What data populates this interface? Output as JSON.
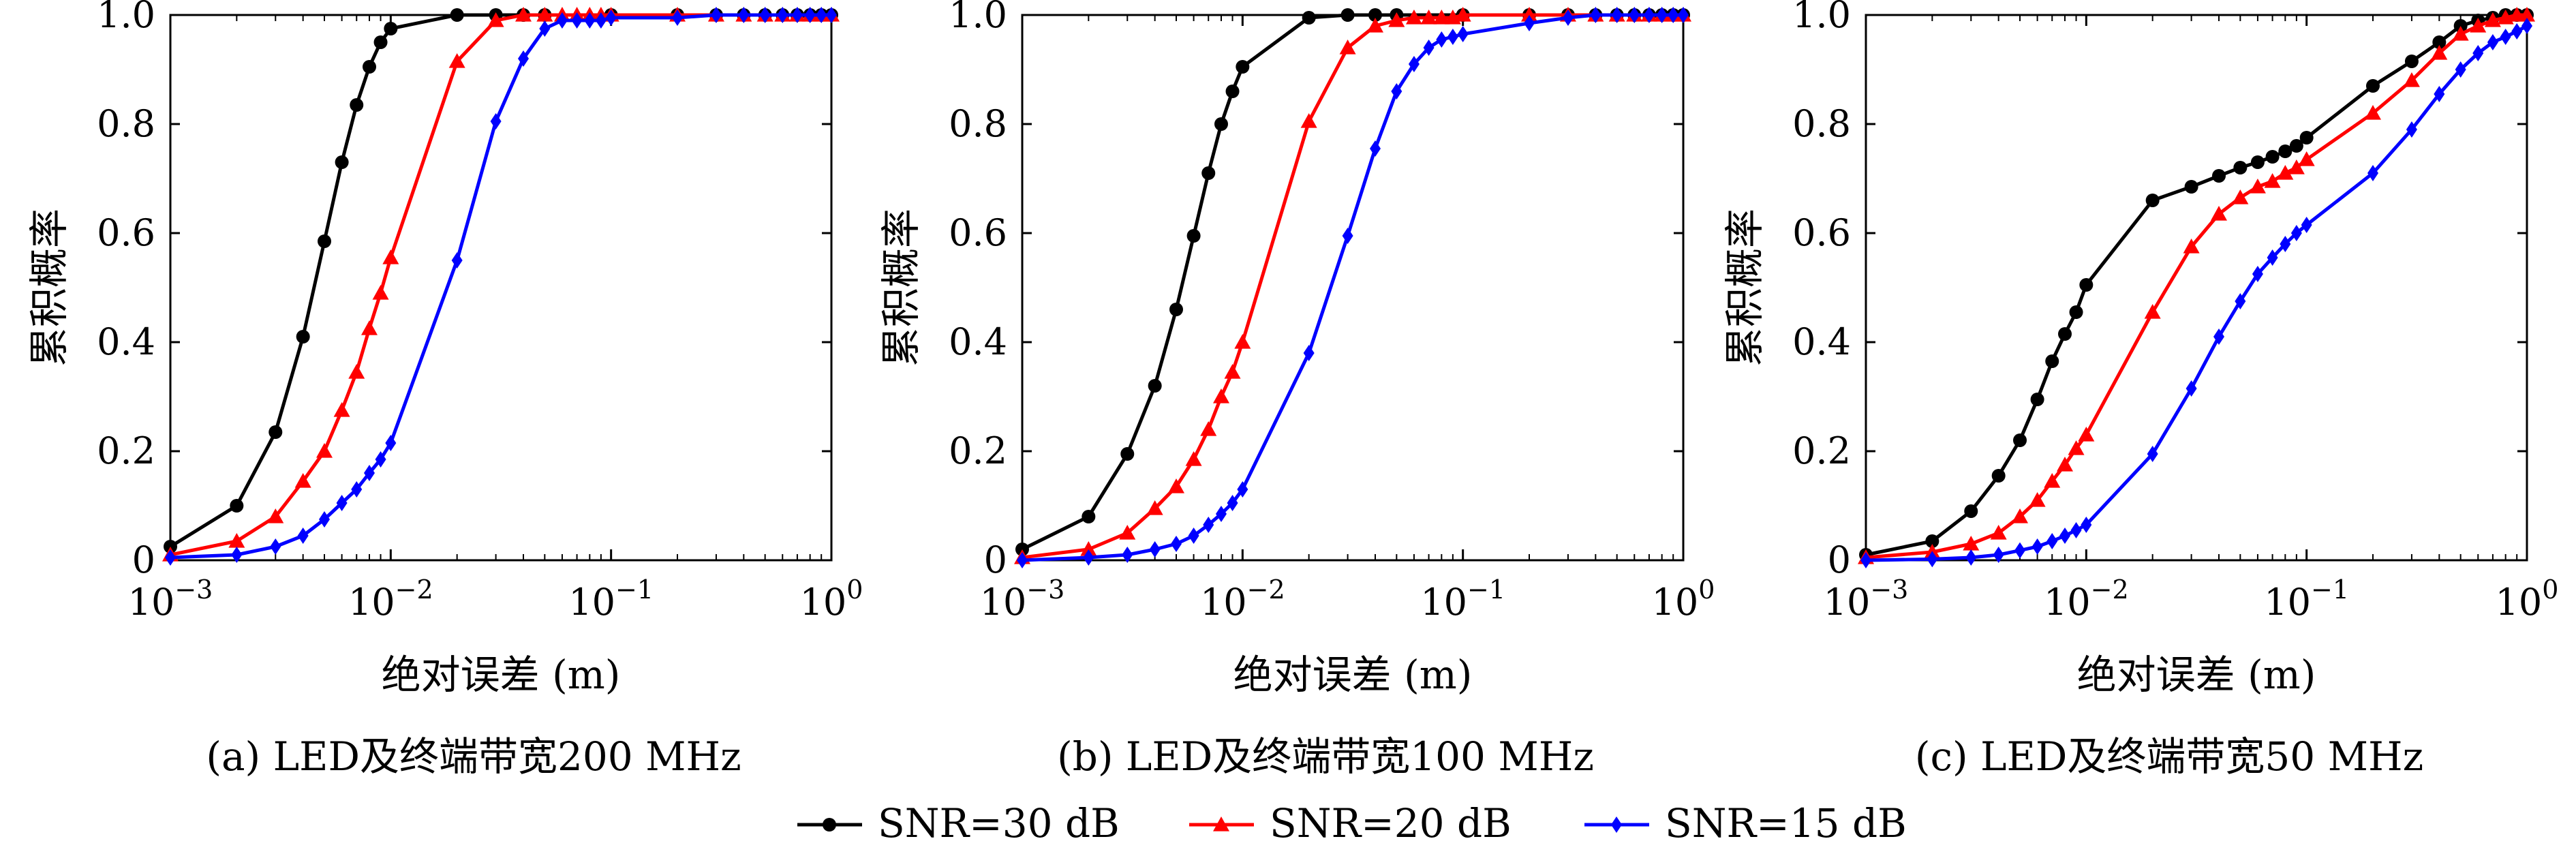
{
  "figure": {
    "legend": [
      {
        "label": "SNR=30 dB",
        "color": "#000000",
        "marker": "circle"
      },
      {
        "label": "SNR=20 dB",
        "color": "#ff0000",
        "marker": "triangle"
      },
      {
        "label": "SNR=15 dB",
        "color": "#0000ff",
        "marker": "diamond"
      }
    ]
  },
  "chart_data": [
    {
      "type": "line",
      "caption": "(a) LED及终端带宽200 MHz",
      "xlabel": "绝对误差 (m)",
      "ylabel": "累积概率",
      "xscale": "log",
      "xlim": [
        0.001,
        1
      ],
      "ylim": [
        0,
        1
      ],
      "xticks": [
        {
          "base": "10",
          "exp": "−3"
        },
        {
          "base": "10",
          "exp": "−2"
        },
        {
          "base": "10",
          "exp": "−1"
        },
        {
          "base": "10",
          "exp": "0"
        }
      ],
      "yticks": [
        "0",
        "0.2",
        "0.4",
        "0.6",
        "0.8",
        "1.0"
      ],
      "series": [
        {
          "name": "SNR=30 dB",
          "color": "#000000",
          "marker": "circle",
          "x": [
            0.001,
            0.002,
            0.003,
            0.004,
            0.005,
            0.006,
            0.007,
            0.008,
            0.009,
            0.01,
            0.02,
            0.03,
            0.04,
            0.05,
            0.1,
            0.2,
            0.3,
            0.4,
            0.5,
            0.6,
            0.7,
            0.8,
            0.9,
            1.0
          ],
          "y": [
            0.025,
            0.1,
            0.235,
            0.41,
            0.585,
            0.73,
            0.835,
            0.905,
            0.95,
            0.975,
            1.0,
            1.0,
            1.0,
            1.0,
            1.0,
            1.0,
            1.0,
            1.0,
            1.0,
            1.0,
            1.0,
            1.0,
            1.0,
            1.0
          ]
        },
        {
          "name": "SNR=20 dB",
          "color": "#ff0000",
          "marker": "triangle",
          "x": [
            0.001,
            0.002,
            0.003,
            0.004,
            0.005,
            0.006,
            0.007,
            0.008,
            0.009,
            0.01,
            0.02,
            0.03,
            0.04,
            0.05,
            0.06,
            0.07,
            0.08,
            0.09,
            0.1,
            0.2,
            0.3,
            0.4,
            0.5,
            0.6,
            0.7,
            0.8,
            0.9,
            1.0
          ],
          "y": [
            0.01,
            0.035,
            0.08,
            0.145,
            0.2,
            0.275,
            0.345,
            0.425,
            0.49,
            0.555,
            0.915,
            0.99,
            1.0,
            1.0,
            1.0,
            1.0,
            1.0,
            1.0,
            1.0,
            1.0,
            1.0,
            1.0,
            1.0,
            1.0,
            1.0,
            1.0,
            1.0,
            1.0
          ]
        },
        {
          "name": "SNR=15 dB",
          "color": "#0000ff",
          "marker": "diamond",
          "x": [
            0.001,
            0.002,
            0.003,
            0.004,
            0.005,
            0.006,
            0.007,
            0.008,
            0.009,
            0.01,
            0.02,
            0.03,
            0.04,
            0.05,
            0.06,
            0.07,
            0.08,
            0.09,
            0.1,
            0.2,
            0.3,
            0.4,
            0.5,
            0.6,
            0.7,
            0.8,
            0.9,
            1.0
          ],
          "y": [
            0.005,
            0.01,
            0.025,
            0.045,
            0.075,
            0.105,
            0.13,
            0.16,
            0.185,
            0.215,
            0.55,
            0.805,
            0.92,
            0.975,
            0.99,
            0.99,
            0.99,
            0.99,
            0.995,
            0.995,
            1.0,
            1.0,
            1.0,
            1.0,
            1.0,
            1.0,
            1.0,
            1.0
          ]
        }
      ]
    },
    {
      "type": "line",
      "caption": "(b) LED及终端带宽100 MHz",
      "xlabel": "绝对误差 (m)",
      "ylabel": "累积概率",
      "xscale": "log",
      "xlim": [
        0.001,
        1
      ],
      "ylim": [
        0,
        1
      ],
      "xticks": [
        {
          "base": "10",
          "exp": "−3"
        },
        {
          "base": "10",
          "exp": "−2"
        },
        {
          "base": "10",
          "exp": "−1"
        },
        {
          "base": "10",
          "exp": "0"
        }
      ],
      "yticks": [
        "0",
        "0.2",
        "0.4",
        "0.6",
        "0.8",
        "1.0"
      ],
      "series": [
        {
          "name": "SNR=30 dB",
          "color": "#000000",
          "marker": "circle",
          "x": [
            0.001,
            0.002,
            0.003,
            0.004,
            0.005,
            0.006,
            0.007,
            0.008,
            0.009,
            0.01,
            0.02,
            0.03,
            0.04,
            0.05,
            0.1,
            0.2,
            0.3,
            0.4,
            0.5,
            0.6,
            0.7,
            0.8,
            0.9,
            1.0
          ],
          "y": [
            0.02,
            0.08,
            0.195,
            0.32,
            0.46,
            0.595,
            0.71,
            0.8,
            0.86,
            0.905,
            0.995,
            1.0,
            1.0,
            1.0,
            1.0,
            1.0,
            1.0,
            1.0,
            1.0,
            1.0,
            1.0,
            1.0,
            1.0,
            1.0
          ]
        },
        {
          "name": "SNR=20 dB",
          "color": "#ff0000",
          "marker": "triangle",
          "x": [
            0.001,
            0.002,
            0.003,
            0.004,
            0.005,
            0.006,
            0.007,
            0.008,
            0.009,
            0.01,
            0.02,
            0.03,
            0.04,
            0.05,
            0.06,
            0.07,
            0.08,
            0.09,
            0.1,
            0.2,
            0.3,
            0.4,
            0.5,
            0.6,
            0.7,
            0.8,
            0.9,
            1.0
          ],
          "y": [
            0.005,
            0.02,
            0.05,
            0.095,
            0.135,
            0.185,
            0.24,
            0.3,
            0.345,
            0.4,
            0.805,
            0.94,
            0.98,
            0.99,
            0.995,
            0.995,
            0.995,
            0.995,
            1.0,
            1.0,
            1.0,
            1.0,
            1.0,
            1.0,
            1.0,
            1.0,
            1.0,
            1.0
          ]
        },
        {
          "name": "SNR=15 dB",
          "color": "#0000ff",
          "marker": "diamond",
          "x": [
            0.001,
            0.002,
            0.003,
            0.004,
            0.005,
            0.006,
            0.007,
            0.008,
            0.009,
            0.01,
            0.02,
            0.03,
            0.04,
            0.05,
            0.06,
            0.07,
            0.08,
            0.09,
            0.1,
            0.2,
            0.3,
            0.4,
            0.5,
            0.6,
            0.7,
            0.8,
            0.9,
            1.0
          ],
          "y": [
            0.0,
            0.005,
            0.01,
            0.02,
            0.03,
            0.045,
            0.065,
            0.085,
            0.105,
            0.13,
            0.38,
            0.595,
            0.755,
            0.86,
            0.91,
            0.94,
            0.955,
            0.96,
            0.965,
            0.985,
            0.995,
            1.0,
            1.0,
            1.0,
            1.0,
            1.0,
            1.0,
            1.0
          ]
        }
      ]
    },
    {
      "type": "line",
      "caption": "(c) LED及终端带宽50 MHz",
      "xlabel": "绝对误差 (m)",
      "ylabel": "累积概率",
      "xscale": "log",
      "xlim": [
        0.001,
        1
      ],
      "ylim": [
        0,
        1
      ],
      "xticks": [
        {
          "base": "10",
          "exp": "−3"
        },
        {
          "base": "10",
          "exp": "−2"
        },
        {
          "base": "10",
          "exp": "−1"
        },
        {
          "base": "10",
          "exp": "0"
        }
      ],
      "yticks": [
        "0",
        "0.2",
        "0.4",
        "0.6",
        "0.8",
        "1.0"
      ],
      "series": [
        {
          "name": "SNR=30 dB",
          "color": "#000000",
          "marker": "circle",
          "x": [
            0.001,
            0.002,
            0.003,
            0.004,
            0.005,
            0.006,
            0.007,
            0.008,
            0.009,
            0.01,
            0.02,
            0.03,
            0.04,
            0.05,
            0.06,
            0.07,
            0.08,
            0.09,
            0.1,
            0.2,
            0.3,
            0.4,
            0.5,
            0.6,
            0.7,
            0.8,
            0.9,
            1.0
          ],
          "y": [
            0.01,
            0.035,
            0.09,
            0.155,
            0.22,
            0.295,
            0.365,
            0.415,
            0.455,
            0.505,
            0.66,
            0.685,
            0.705,
            0.72,
            0.73,
            0.74,
            0.75,
            0.76,
            0.775,
            0.87,
            0.915,
            0.95,
            0.98,
            0.99,
            0.995,
            1.0,
            1.0,
            1.0
          ]
        },
        {
          "name": "SNR=20 dB",
          "color": "#ff0000",
          "marker": "triangle",
          "x": [
            0.001,
            0.002,
            0.003,
            0.004,
            0.005,
            0.006,
            0.007,
            0.008,
            0.009,
            0.01,
            0.02,
            0.03,
            0.04,
            0.05,
            0.06,
            0.07,
            0.08,
            0.09,
            0.1,
            0.2,
            0.3,
            0.4,
            0.5,
            0.6,
            0.7,
            0.8,
            0.9,
            1.0
          ],
          "y": [
            0.005,
            0.015,
            0.03,
            0.05,
            0.08,
            0.11,
            0.145,
            0.175,
            0.205,
            0.23,
            0.455,
            0.575,
            0.635,
            0.665,
            0.685,
            0.695,
            0.71,
            0.72,
            0.735,
            0.82,
            0.88,
            0.93,
            0.965,
            0.98,
            0.99,
            0.995,
            1.0,
            1.0
          ]
        },
        {
          "name": "SNR=15 dB",
          "color": "#0000ff",
          "marker": "diamond",
          "x": [
            0.001,
            0.002,
            0.003,
            0.004,
            0.005,
            0.006,
            0.007,
            0.008,
            0.009,
            0.01,
            0.02,
            0.03,
            0.04,
            0.05,
            0.06,
            0.07,
            0.08,
            0.09,
            0.1,
            0.2,
            0.3,
            0.4,
            0.5,
            0.6,
            0.7,
            0.8,
            0.9,
            1.0
          ],
          "y": [
            0.0,
            0.002,
            0.005,
            0.01,
            0.018,
            0.025,
            0.035,
            0.045,
            0.055,
            0.065,
            0.195,
            0.315,
            0.41,
            0.475,
            0.525,
            0.555,
            0.58,
            0.6,
            0.615,
            0.71,
            0.79,
            0.855,
            0.9,
            0.93,
            0.95,
            0.96,
            0.97,
            0.98
          ]
        }
      ]
    }
  ]
}
